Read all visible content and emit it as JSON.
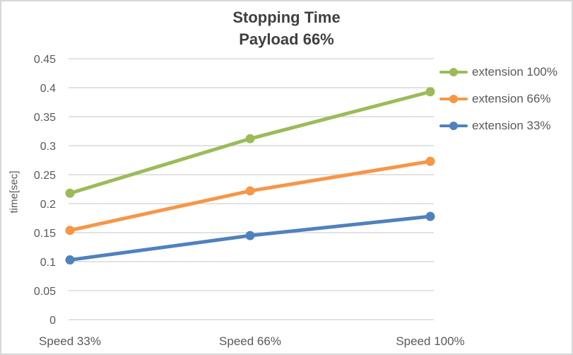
{
  "chart_data": {
    "type": "line",
    "title": "Stopping Time",
    "subtitle": "Payload 66%",
    "ylabel": "time[sec]",
    "xlabel": "",
    "categories": [
      "Speed 33%",
      "Speed 66%",
      "Speed 100%"
    ],
    "series": [
      {
        "name": "extension 100%",
        "color": "#9BBB59",
        "values": [
          0.218,
          0.312,
          0.393
        ]
      },
      {
        "name": "extension 66%",
        "color": "#F79646",
        "values": [
          0.154,
          0.222,
          0.273
        ]
      },
      {
        "name": "extension 33%",
        "color": "#4F81BD",
        "values": [
          0.103,
          0.145,
          0.178
        ]
      }
    ],
    "ylim": [
      0,
      0.45
    ],
    "ytick_step": 0.05,
    "ytick_labels": [
      "0",
      "0.05",
      "0.1",
      "0.15",
      "0.2",
      "0.25",
      "0.3",
      "0.35",
      "0.4",
      "0.45"
    ],
    "grid": true,
    "legend_position": "right"
  },
  "colors": {
    "title_text": "#404040",
    "axis_text": "#595959",
    "gridline": "#D9D9D9",
    "background": "#FFFFFF",
    "frame_border": "#D7D7D7"
  }
}
